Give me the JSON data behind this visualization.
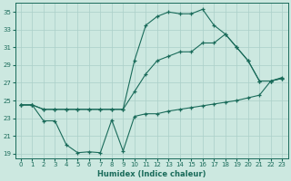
{
  "xlabel": "Humidex (Indice chaleur)",
  "bg_color": "#cce8e0",
  "grid_color": "#aacfc8",
  "line_color": "#1a6b5a",
  "xlim": [
    -0.5,
    23.5
  ],
  "ylim": [
    18.5,
    36
  ],
  "xticks": [
    0,
    1,
    2,
    3,
    4,
    5,
    6,
    7,
    8,
    9,
    10,
    11,
    12,
    13,
    14,
    15,
    16,
    17,
    18,
    19,
    20,
    21,
    22,
    23
  ],
  "yticks": [
    19,
    21,
    23,
    25,
    27,
    29,
    31,
    33,
    35
  ],
  "line1_x": [
    0,
    1,
    2,
    3,
    4,
    5,
    6,
    7,
    8,
    9,
    10,
    11,
    12,
    13,
    14,
    15,
    16,
    17,
    18,
    19,
    20,
    21,
    22,
    23
  ],
  "line1_y": [
    24.5,
    24.5,
    22.7,
    22.7,
    20.0,
    19.1,
    19.2,
    19.1,
    22.8,
    19.3,
    23.2,
    23.5,
    23.5,
    23.8,
    24.0,
    24.2,
    24.4,
    24.6,
    24.8,
    25.0,
    25.3,
    25.6,
    27.2,
    27.6
  ],
  "line2_x": [
    0,
    1,
    2,
    3,
    4,
    5,
    6,
    7,
    8,
    9,
    10,
    11,
    12,
    13,
    14,
    15,
    16,
    17,
    18,
    19,
    20,
    21,
    22,
    23
  ],
  "line2_y": [
    24.5,
    24.5,
    24.0,
    24.0,
    24.0,
    24.0,
    24.0,
    24.0,
    24.0,
    24.0,
    26.0,
    28.0,
    29.5,
    30.0,
    30.5,
    30.5,
    31.5,
    31.5,
    32.5,
    31.0,
    29.5,
    27.2,
    27.2,
    27.5
  ],
  "line3_x": [
    0,
    1,
    2,
    3,
    4,
    5,
    6,
    7,
    8,
    9,
    10,
    11,
    12,
    13,
    14,
    15,
    16,
    17,
    18,
    19,
    20,
    21,
    22,
    23
  ],
  "line3_y": [
    24.5,
    24.5,
    24.0,
    24.0,
    24.0,
    24.0,
    24.0,
    24.0,
    24.0,
    24.0,
    29.5,
    33.5,
    34.5,
    35.0,
    34.8,
    34.8,
    35.3,
    33.5,
    32.5,
    31.0,
    29.5,
    27.2,
    27.2,
    27.5
  ]
}
